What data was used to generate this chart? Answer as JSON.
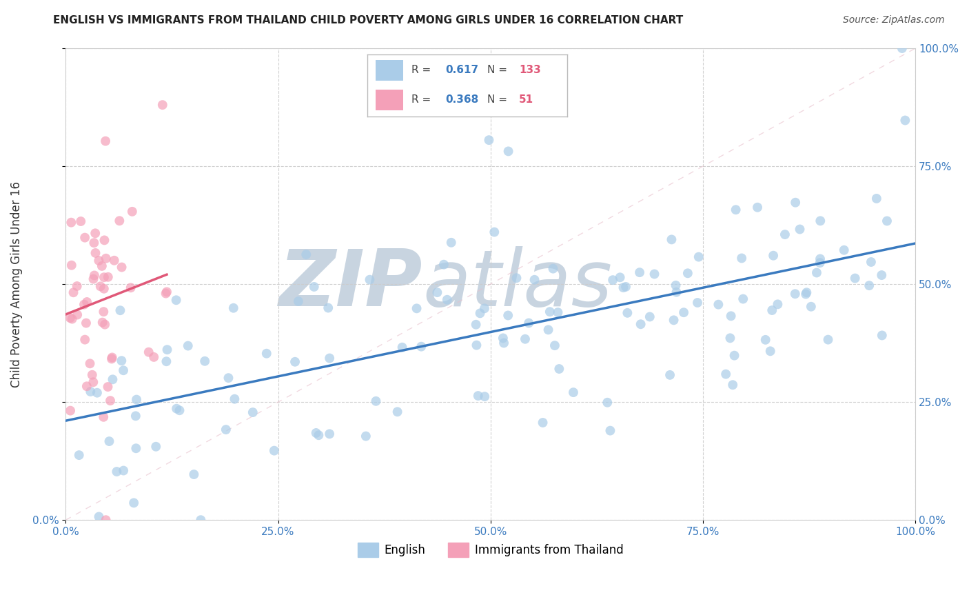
{
  "title": "ENGLISH VS IMMIGRANTS FROM THAILAND CHILD POVERTY AMONG GIRLS UNDER 16 CORRELATION CHART",
  "source": "Source: ZipAtlas.com",
  "ylabel": "Child Poverty Among Girls Under 16",
  "x_tick_labels": [
    "0.0%",
    "25.0%",
    "50.0%",
    "75.0%",
    "100.0%"
  ],
  "y_tick_labels_left": [
    "0.0%",
    "",
    "",
    "",
    ""
  ],
  "y_tick_labels_right": [
    "0.0%",
    "25.0%",
    "50.0%",
    "75.0%",
    "100.0%"
  ],
  "english_R": 0.617,
  "english_N": 133,
  "thailand_R": 0.368,
  "thailand_N": 51,
  "english_color": "#aacce8",
  "thailand_color": "#f4a0b8",
  "english_line_color": "#3a7abf",
  "thailand_line_color": "#e05878",
  "diag_line_color": "#e8c0cc",
  "watermark_zip": "ZIP",
  "watermark_atlas": "atlas",
  "watermark_color": "#c8d4e0",
  "legend_labels": [
    "English",
    "Immigrants from Thailand"
  ],
  "legend_R_color": "#3a7abf",
  "legend_N_color": "#e05878",
  "background_color": "#ffffff",
  "grid_color": "#cccccc",
  "title_color": "#222222",
  "source_color": "#555555",
  "tick_color": "#3a7abf",
  "ylabel_color": "#333333"
}
